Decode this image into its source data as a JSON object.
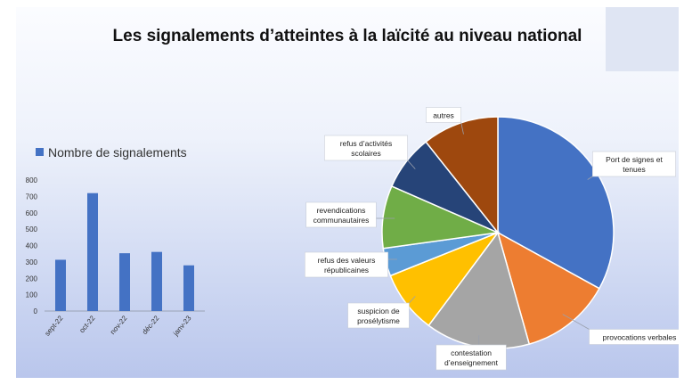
{
  "title": "Les signalements d’atteintes à la laïcité au niveau national",
  "chart_data": [
    {
      "type": "bar",
      "legend": "Nombre de signalements",
      "categories": [
        "sept-22",
        "oct-22",
        "nov-22",
        "déc-22",
        "janv-23"
      ],
      "values": [
        313,
        720,
        353,
        361,
        279
      ],
      "ylim": [
        0,
        800
      ],
      "yticks": [
        0,
        100,
        200,
        300,
        400,
        500,
        600,
        700,
        800
      ],
      "color": "#4472C4",
      "legend_position": "top",
      "grid": false
    },
    {
      "type": "pie",
      "slices": [
        {
          "label": "Port de signes et tenues",
          "value": 34,
          "color": "#4472C4"
        },
        {
          "label": "provocations verbales",
          "value": 13,
          "color": "#ED7D31"
        },
        {
          "label": "contestation d’enseignement",
          "value": 15,
          "color": "#A5A5A5"
        },
        {
          "label": "suspicion de prosélytisme",
          "value": 9,
          "color": "#FFC000"
        },
        {
          "label": "refus des valeurs républicaines",
          "value": 4,
          "color": "#5B9BD5"
        },
        {
          "label": "revendications communautaires",
          "value": 9,
          "color": "#70AD47"
        },
        {
          "label": "refus d’activités scolaires",
          "value": 8,
          "color": "#264478"
        },
        {
          "label": "autres",
          "value": 11,
          "color": "#9E480E"
        }
      ]
    }
  ]
}
